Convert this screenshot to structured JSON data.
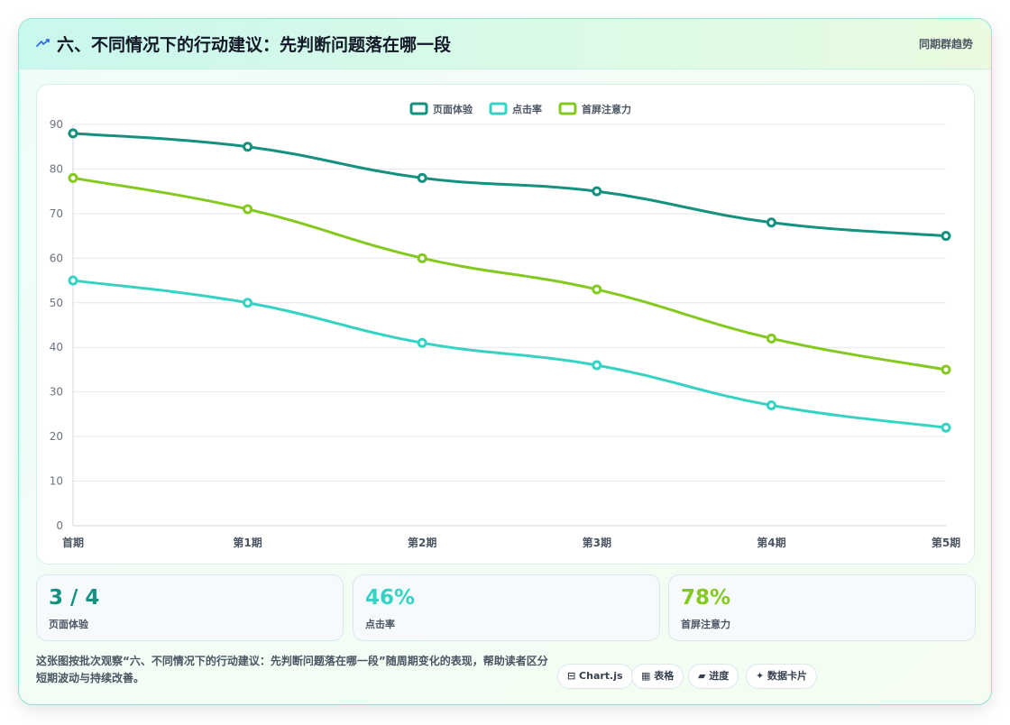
{
  "header": {
    "title": "六、不同情况下的行动建议：先判断问题落在哪一段",
    "subtitle": "同期群趋势"
  },
  "chart_data": {
    "type": "line",
    "categories": [
      "首期",
      "第1期",
      "第2期",
      "第3期",
      "第4期",
      "第5期"
    ],
    "series": [
      {
        "name": "页面体验",
        "color": "#14917f",
        "values": [
          88,
          85,
          78,
          75,
          68,
          65
        ]
      },
      {
        "name": "点击率",
        "color": "#35d3c3",
        "values": [
          55,
          50,
          41,
          36,
          27,
          22
        ]
      },
      {
        "name": "首屏注意力",
        "color": "#84c91e",
        "values": [
          78,
          71,
          60,
          53,
          42,
          35
        ]
      }
    ],
    "ylim": [
      0,
      90
    ],
    "yticks": [
      "0",
      "10",
      "20",
      "30",
      "40",
      "50",
      "60",
      "70",
      "80",
      "90"
    ],
    "grid": true,
    "legend_position": "top-center",
    "curve": "smooth"
  },
  "stats": [
    {
      "value": "3 / 4",
      "label": "页面体验",
      "color": "#14917f"
    },
    {
      "value": "46%",
      "label": "点击率",
      "color": "#35d3c3"
    },
    {
      "value": "78%",
      "label": "首屏注意力",
      "color": "#84c91e"
    }
  ],
  "footer": {
    "description": "这张图按批次观察“六、不同情况下的行动建议：先判断问题落在哪一段”随周期变化的表现，帮助读者区分短期波动与持续改善。",
    "tags": [
      "⊟ Chart.js",
      "▦ 表格",
      "▰ 进度",
      "✦ 数据卡片"
    ]
  }
}
